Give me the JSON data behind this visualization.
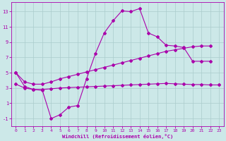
{
  "xlabel": "Windchill (Refroidissement éolien,°C)",
  "background_color": "#cce8e8",
  "grid_color": "#aacccc",
  "line_color": "#aa00aa",
  "xlim": [
    -0.5,
    23.5
  ],
  "ylim": [
    -2.0,
    14.2
  ],
  "xticks": [
    0,
    1,
    2,
    3,
    4,
    5,
    6,
    7,
    8,
    9,
    10,
    11,
    12,
    13,
    14,
    15,
    16,
    17,
    18,
    19,
    20,
    21,
    22,
    23
  ],
  "yticks": [
    -1,
    1,
    3,
    5,
    7,
    9,
    11,
    13
  ],
  "s1_x": [
    0,
    1,
    2,
    3,
    4,
    5,
    6,
    7,
    8,
    9,
    10,
    11,
    12,
    13,
    14,
    15,
    16,
    17,
    18,
    19,
    20,
    21,
    22
  ],
  "s1_y": [
    5.0,
    3.2,
    2.8,
    2.7,
    -1.0,
    -0.5,
    0.5,
    0.7,
    4.2,
    7.5,
    10.2,
    11.8,
    13.1,
    13.0,
    13.4,
    10.2,
    9.7,
    8.6,
    8.5,
    8.3,
    6.5,
    6.5,
    6.5
  ],
  "s2_x": [
    0,
    1,
    2,
    3,
    4,
    5,
    6,
    7,
    8,
    9,
    10,
    11,
    12,
    13,
    14,
    15,
    16,
    17,
    18,
    19,
    20,
    21,
    22
  ],
  "s2_y": [
    5.0,
    3.8,
    3.5,
    3.5,
    3.8,
    4.2,
    4.5,
    4.8,
    5.1,
    5.4,
    5.7,
    6.0,
    6.3,
    6.6,
    6.9,
    7.2,
    7.5,
    7.8,
    8.0,
    8.2,
    8.4,
    8.5,
    8.5
  ],
  "s3_x": [
    0,
    1,
    2,
    3,
    4,
    5,
    6,
    7,
    8,
    9,
    10,
    11,
    12,
    13,
    14,
    15,
    16,
    17,
    18,
    19,
    20,
    21,
    22,
    23
  ],
  "s3_y": [
    3.5,
    3.0,
    2.8,
    2.8,
    2.9,
    3.0,
    3.05,
    3.1,
    3.15,
    3.2,
    3.25,
    3.3,
    3.35,
    3.4,
    3.45,
    3.5,
    3.55,
    3.6,
    3.55,
    3.5,
    3.45,
    3.45,
    3.4,
    3.4
  ]
}
